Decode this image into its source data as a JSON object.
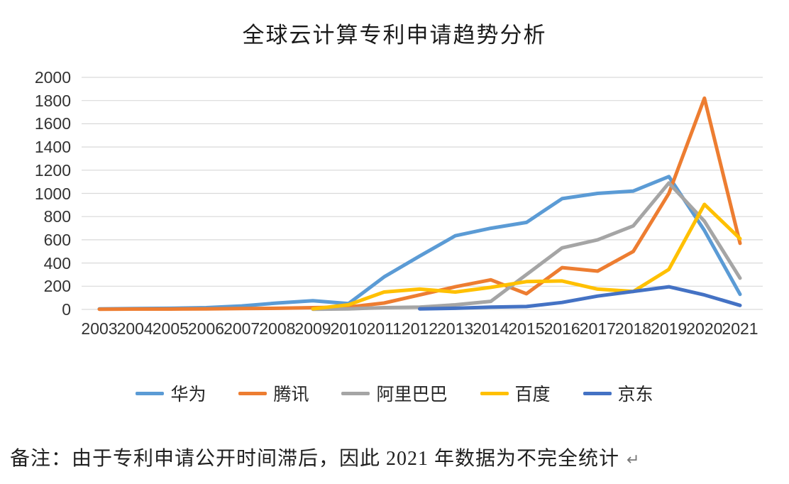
{
  "title": "全球云计算专利申请趋势分析",
  "note": {
    "text": "备注：由于专利申请公开时间滞后，因此 2021 年数据为不完全统计",
    "return_mark": "↵"
  },
  "legend": [
    "华为",
    "腾讯",
    "阿里巴巴",
    "百度",
    "京东"
  ],
  "colors": {
    "huawei": "#5B9BD5",
    "tencent": "#ED7D31",
    "alibaba": "#A5A5A5",
    "baidu": "#FFC000",
    "jd": "#4472C4",
    "gridline": "#D9D9D9"
  },
  "chart_data": {
    "type": "line",
    "title": "全球云计算专利申请趋势分析",
    "x": [
      2003,
      2004,
      2005,
      2006,
      2007,
      2008,
      2009,
      2010,
      2011,
      2012,
      2013,
      2014,
      2015,
      2016,
      2017,
      2018,
      2019,
      2020,
      2021
    ],
    "series": [
      {
        "name": "华为",
        "color": "#5B9BD5",
        "values": [
          5,
          8,
          10,
          15,
          30,
          55,
          75,
          50,
          280,
          460,
          635,
          700,
          750,
          955,
          1000,
          1020,
          1145,
          680,
          130
        ]
      },
      {
        "name": "腾讯",
        "color": "#ED7D31",
        "values": [
          2,
          3,
          3,
          5,
          8,
          10,
          15,
          20,
          55,
          125,
          195,
          255,
          135,
          360,
          330,
          500,
          1000,
          1820,
          570
        ]
      },
      {
        "name": "阿里巴巴",
        "color": "#A5A5A5",
        "values": [
          null,
          null,
          null,
          null,
          null,
          null,
          2,
          5,
          15,
          20,
          40,
          70,
          300,
          530,
          600,
          720,
          1090,
          760,
          270
        ]
      },
      {
        "name": "百度",
        "color": "#FFC000",
        "values": [
          null,
          null,
          null,
          null,
          null,
          null,
          5,
          40,
          150,
          175,
          150,
          190,
          240,
          245,
          175,
          155,
          345,
          905,
          610
        ]
      },
      {
        "name": "京东",
        "color": "#4472C4",
        "values": [
          null,
          null,
          null,
          null,
          null,
          null,
          null,
          null,
          null,
          5,
          10,
          20,
          25,
          60,
          115,
          155,
          195,
          125,
          35
        ]
      }
    ],
    "xlabel": "",
    "ylabel": "",
    "ylim": [
      0,
      2000
    ],
    "ytick_step": 200,
    "grid": true,
    "legend_position": "bottom"
  }
}
